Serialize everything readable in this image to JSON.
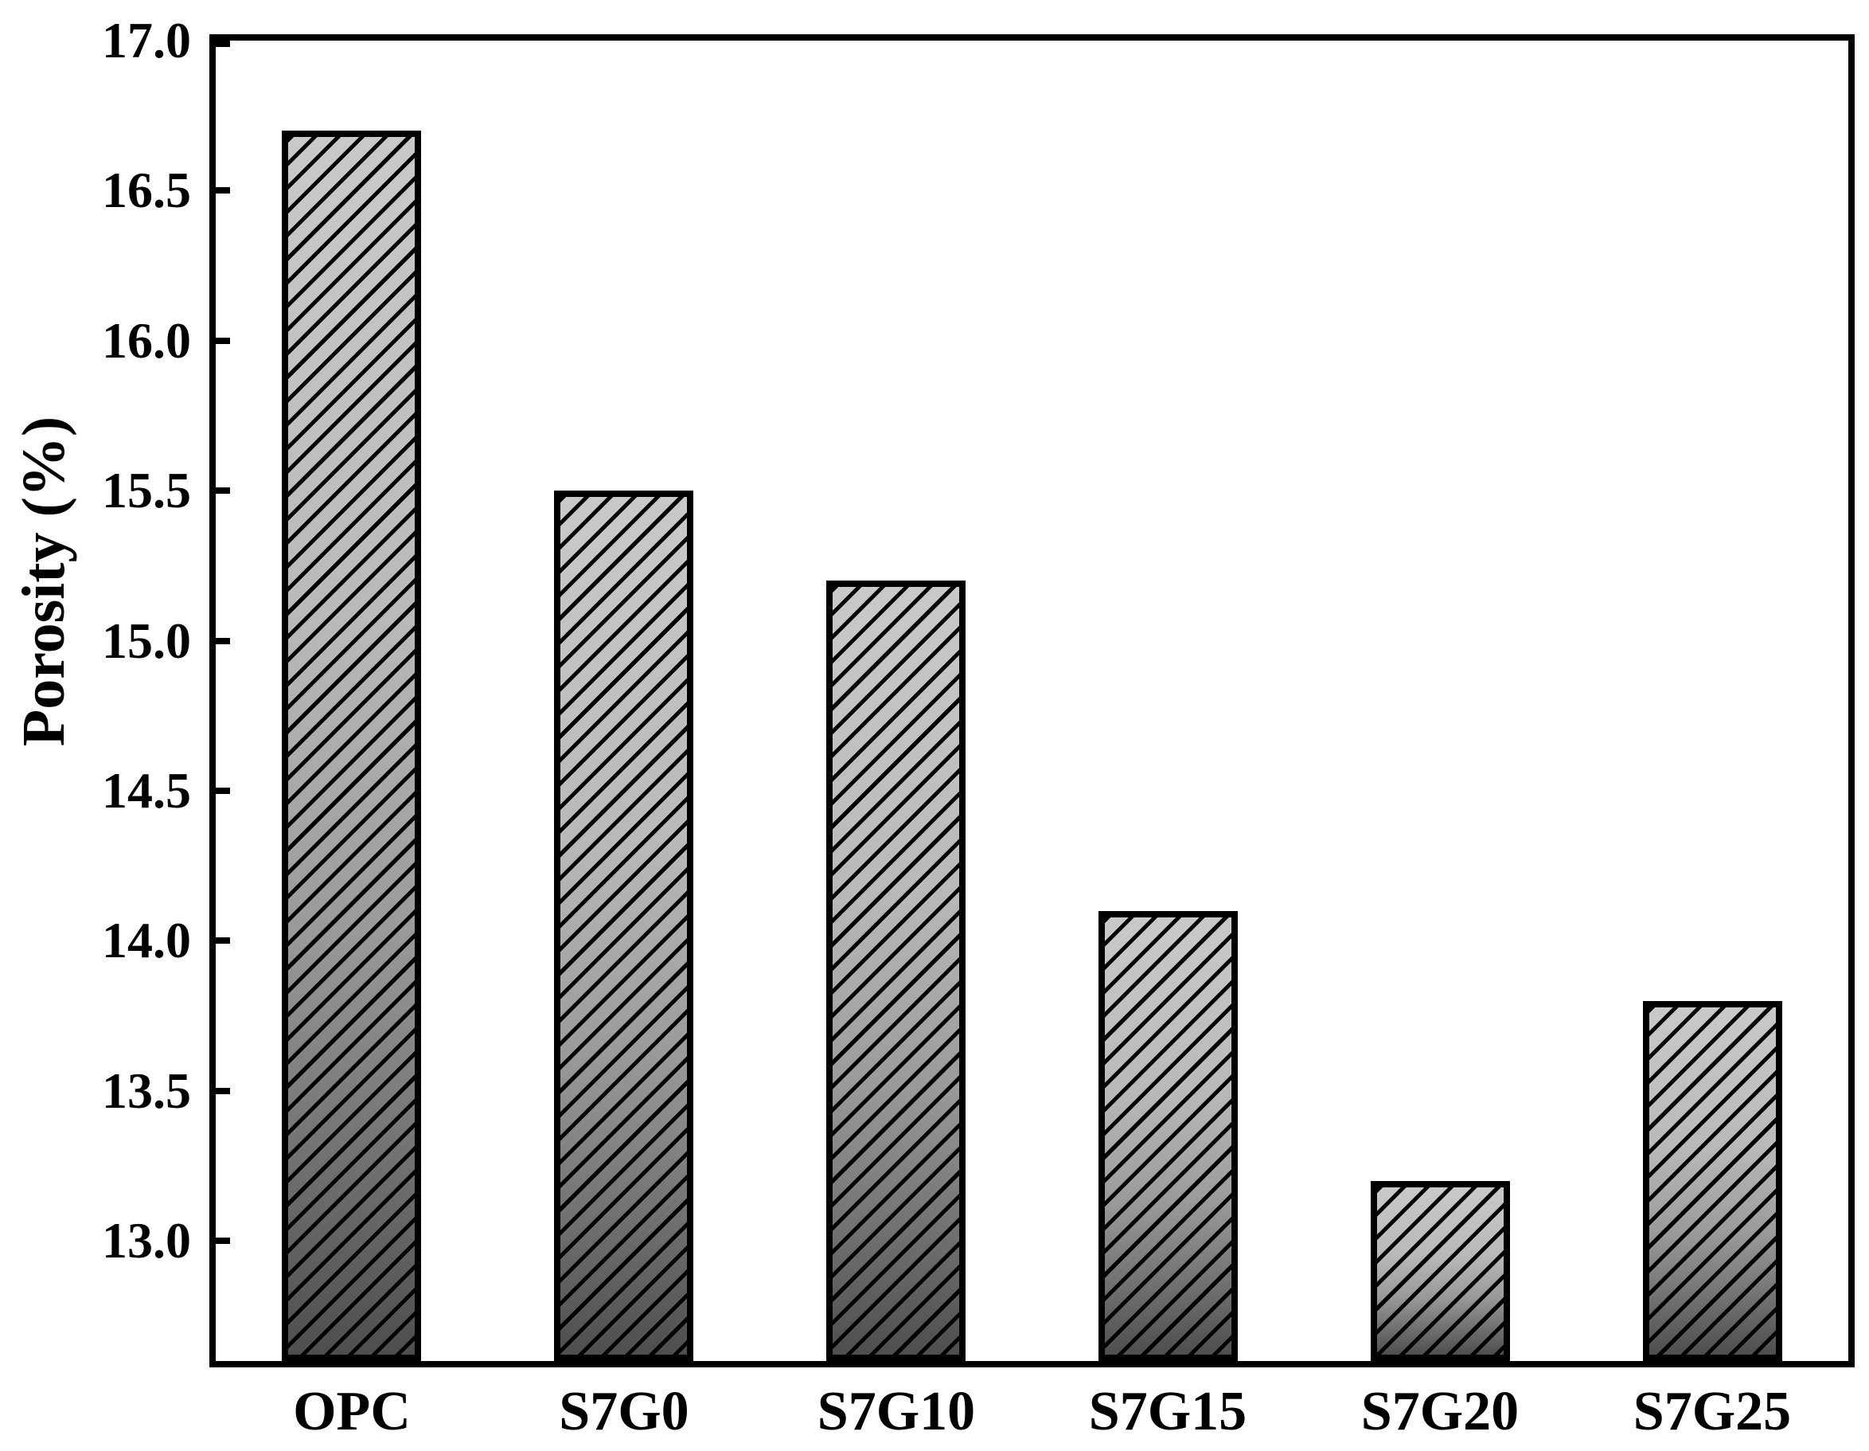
{
  "chart_data": {
    "type": "bar",
    "title": "",
    "xlabel": "",
    "ylabel": "Porosity (%)",
    "categories": [
      "OPC",
      "S7G0",
      "S7G10",
      "S7G15",
      "S7G20",
      "S7G25"
    ],
    "values": [
      16.7,
      15.5,
      15.2,
      14.1,
      13.2,
      13.8
    ],
    "ylim": [
      12.6,
      17.0
    ],
    "yticks": [
      17.0,
      16.5,
      16.0,
      15.5,
      15.0,
      14.5,
      14.0,
      13.5,
      13.0
    ],
    "ytick_labels": [
      "17.0",
      "16.5",
      "16.0",
      "15.5",
      "15.0",
      "14.5",
      "14.0",
      "13.5",
      "13.0"
    ],
    "grid": "off",
    "legend": "none",
    "bar_style": {
      "hatch": "diagonal-forward-slash",
      "hatch_color": "#000000",
      "border_color": "#000000",
      "gradient_top_color": "#c9c9c9",
      "gradient_bottom_color": "#4e4e4e"
    },
    "axis_color": "#000000",
    "background_color": "#ffffff"
  }
}
